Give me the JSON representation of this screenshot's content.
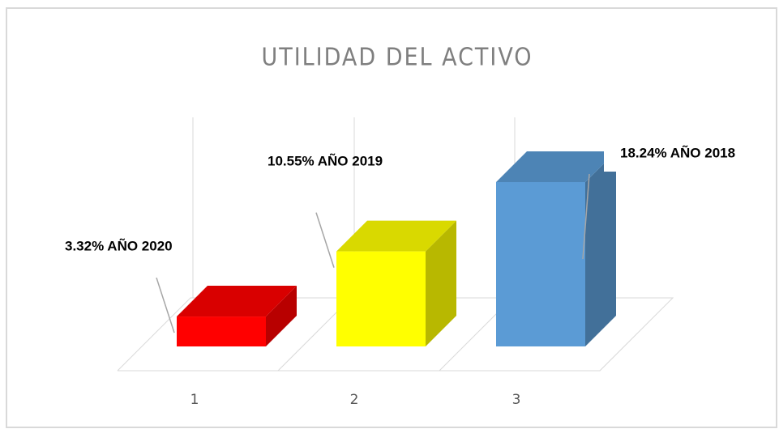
{
  "chart_data": {
    "type": "bar3d",
    "title": "UTILIDAD DEL ACTIVO",
    "categories": [
      "1",
      "2",
      "3"
    ],
    "values": [
      3.32,
      10.55,
      18.24
    ],
    "value_labels": [
      "3.32% AÑO 2020",
      "10.55% AÑO 2019",
      "18.24% AÑO 2018"
    ],
    "colors": [
      "#ff0000",
      "#ffff00",
      "#5b9bd5"
    ]
  }
}
